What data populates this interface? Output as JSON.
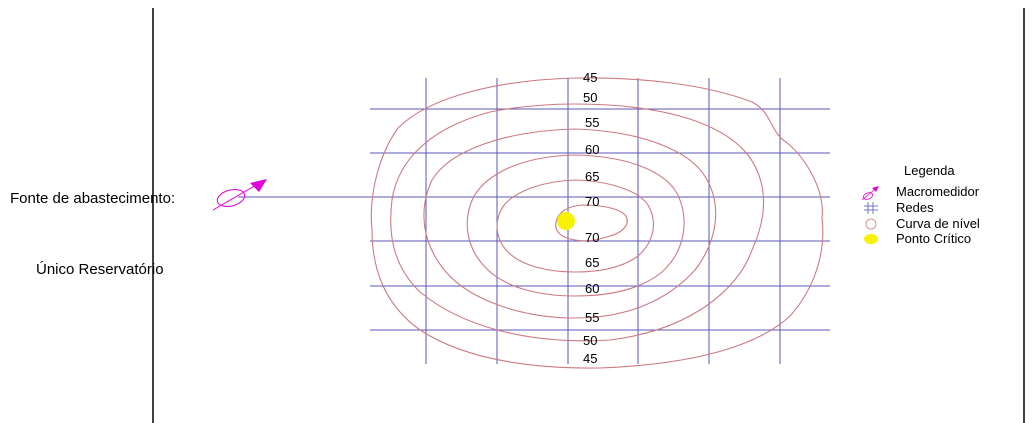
{
  "side_labels": {
    "source": "Fonte de abastecimento:",
    "reservoir": "Único Reservatório"
  },
  "contour_labels": {
    "top": [
      "45",
      "50",
      "55",
      "60",
      "65",
      "70"
    ],
    "bottom": [
      "70",
      "65",
      "60",
      "55",
      "50",
      "45"
    ]
  },
  "legend": {
    "title": "Legenda",
    "items": [
      {
        "label": "Macromedidor",
        "icon": "macromedidor-icon"
      },
      {
        "label": "Redes",
        "icon": "redes-icon"
      },
      {
        "label": "Curva de nível",
        "icon": "curva-de-nivel-icon"
      },
      {
        "label": "Ponto Crítico",
        "icon": "ponto-critico-icon"
      }
    ]
  },
  "colors": {
    "network_lines": "#5a57b8",
    "contours": "#cd7a82",
    "macromedidor": "#e000d8",
    "critical_point": "#f7f200",
    "border": "#000000"
  }
}
